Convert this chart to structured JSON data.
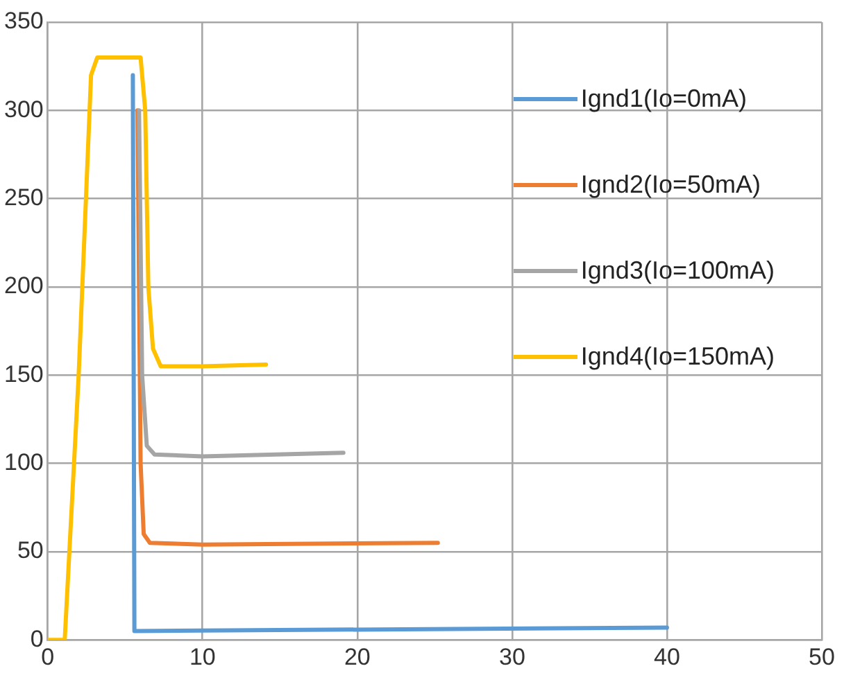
{
  "chart_data": {
    "type": "line",
    "xlim": [
      0,
      50
    ],
    "xticks": [
      0,
      10,
      20,
      30,
      40,
      50
    ],
    "ylim": [
      0,
      350
    ],
    "yticks": [
      0,
      50,
      100,
      150,
      200,
      250,
      300,
      350
    ],
    "grid": true,
    "legend": "top right",
    "marker": "none",
    "line_style": "solid",
    "series": [
      {
        "name": "Ignd1(Io=0mA)",
        "color": "#5b9bd5",
        "x": [
          5.5,
          5.6,
          40
        ],
        "values": [
          320,
          5,
          7
        ]
      },
      {
        "name": "Ignd2(Io=50mA)",
        "color": "#ed7d31",
        "x": [
          5.8,
          6.0,
          6.2,
          6.6,
          10,
          25.2
        ],
        "values": [
          300,
          100,
          60,
          55,
          54,
          55
        ]
      },
      {
        "name": "Ignd3(Io=100mA)",
        "color": "#a5a5a5",
        "x": [
          5.9,
          6.1,
          6.4,
          6.9,
          10,
          19.1
        ],
        "values": [
          300,
          150,
          110,
          105,
          104,
          106
        ]
      },
      {
        "name": "Ignd4(Io=150mA)",
        "color": "#ffc000",
        "x": [
          0,
          1.1,
          2.0,
          2.8,
          3.2,
          6.0,
          6.3,
          6.5,
          6.8,
          7.3,
          10,
          14.1
        ],
        "values": [
          0,
          0,
          150,
          320,
          330,
          330,
          300,
          200,
          165,
          155,
          155,
          156
        ]
      }
    ]
  }
}
